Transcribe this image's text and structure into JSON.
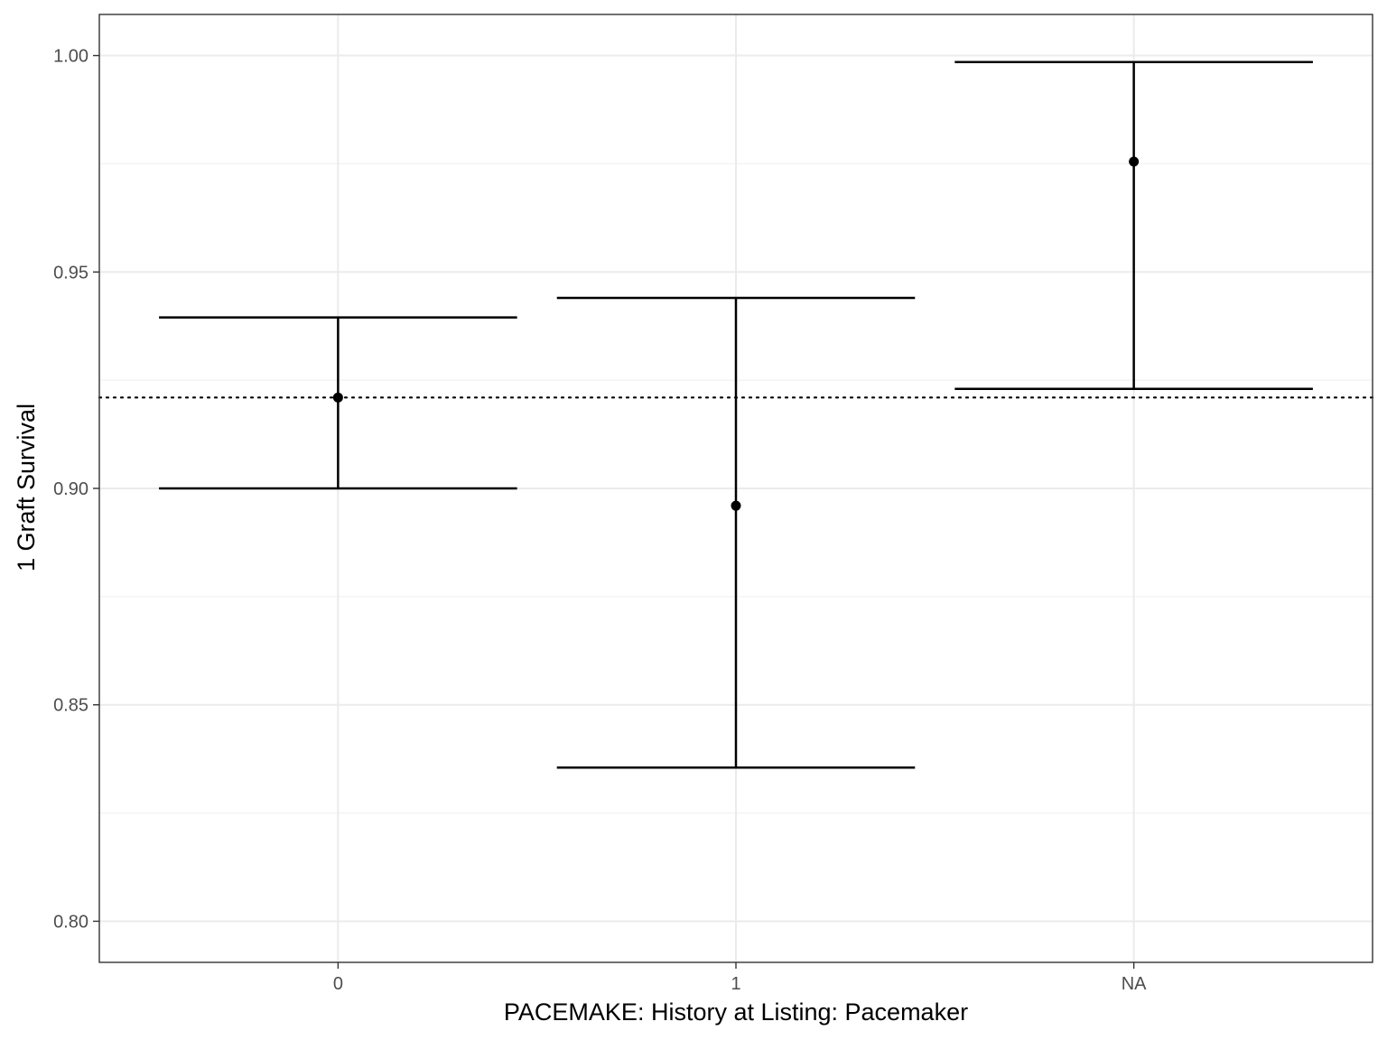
{
  "chart_data": {
    "type": "errorbar",
    "xlabel": "PACEMAKE: History at Listing: Pacemaker",
    "ylabel": "1 Graft Survival",
    "categories": [
      "0",
      "1",
      "NA"
    ],
    "series": [
      {
        "estimate": [
          0.921,
          0.896,
          0.9755
        ],
        "lower": [
          0.9,
          0.8355,
          0.923
        ],
        "upper": [
          0.9395,
          0.944,
          0.9985
        ]
      }
    ],
    "reference_line": {
      "y": 0.921,
      "style": "dotted"
    },
    "ylim": [
      0.7905,
      1.0095
    ],
    "yticks": [
      0.8,
      0.85,
      0.9,
      0.95,
      1.0
    ],
    "ytick_labels": [
      "0.80",
      "0.85",
      "0.90",
      "0.95",
      "1.00"
    ],
    "grid": true,
    "colors": {
      "marks": "#000000",
      "grid_major": "#ebebeb",
      "grid_minor": "#f2f2f2",
      "panel_border": "#333333"
    }
  }
}
